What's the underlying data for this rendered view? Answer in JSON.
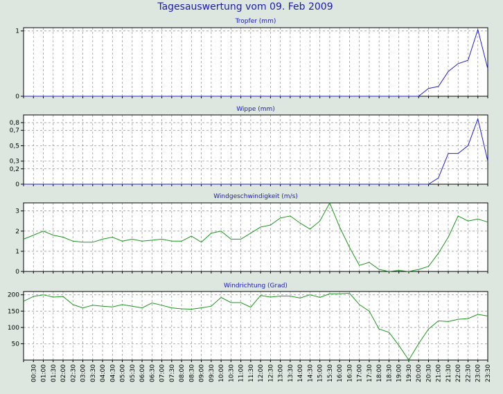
{
  "page": {
    "title": "Tagesauswertung vom 09. Feb 2009"
  },
  "x_labels": [
    "00:30",
    "01:00",
    "01:30",
    "02:00",
    "02:30",
    "03:00",
    "03:30",
    "04:00",
    "04:30",
    "05:00",
    "05:30",
    "06:00",
    "06:30",
    "07:00",
    "07:30",
    "08:00",
    "08:30",
    "09:00",
    "09:30",
    "10:00",
    "10:30",
    "11:00",
    "11:30",
    "12:00",
    "12:30",
    "13:00",
    "13:30",
    "14:00",
    "14:30",
    "15:00",
    "15:30",
    "16:00",
    "16:30",
    "17:00",
    "17:30",
    "18:00",
    "18:30",
    "19:00",
    "19:30",
    "20:00",
    "20:30",
    "21:00",
    "21:30",
    "22:00",
    "22:30",
    "23:00",
    "23:30"
  ],
  "colors": {
    "page_bg": "#dde7df",
    "text": "#1a1ab4",
    "rain_line": "#1f1fcc",
    "wind_line": "#1b961b",
    "grid": "#8c8c8c"
  },
  "chart_data": [
    {
      "type": "line",
      "title": "Tropfer (mm)",
      "yticks": [
        "1",
        "0"
      ],
      "ylim": [
        0,
        1.05
      ],
      "grid": true,
      "color": "#1f1fcc",
      "series": [
        {
          "values": [
            0,
            0,
            0,
            0,
            0,
            0,
            0,
            0,
            0,
            0,
            0,
            0,
            0,
            0,
            0,
            0,
            0,
            0,
            0,
            0,
            0,
            0,
            0,
            0,
            0,
            0,
            0,
            0,
            0,
            0,
            0,
            0,
            0,
            0,
            0,
            0,
            0,
            0,
            0,
            0,
            0,
            0.12,
            0.15,
            0.38,
            0.5,
            0.55,
            1.02,
            0.42
          ]
        }
      ]
    },
    {
      "type": "line",
      "title": "Wippe (mm)",
      "yticks": [
        "0,8",
        "0,7",
        "0,5",
        "0,3",
        "0,2",
        "0"
      ],
      "ylim": [
        0,
        0.9
      ],
      "grid": true,
      "color": "#1f1fcc",
      "series": [
        {
          "values": [
            0,
            0,
            0,
            0,
            0,
            0,
            0,
            0,
            0,
            0,
            0,
            0,
            0,
            0,
            0,
            0,
            0,
            0,
            0,
            0,
            0,
            0,
            0,
            0,
            0,
            0,
            0,
            0,
            0,
            0,
            0,
            0,
            0,
            0,
            0,
            0,
            0,
            0,
            0,
            0,
            0,
            0,
            0.08,
            0.4,
            0.4,
            0.5,
            0.85,
            0.3
          ]
        }
      ]
    },
    {
      "type": "line",
      "title": "Windgeschwindigkeit (m/s)",
      "yticks": [
        "3",
        "2",
        "1",
        "0"
      ],
      "ylim": [
        0,
        3.4
      ],
      "grid": true,
      "color": "#1b961b",
      "series": [
        {
          "values": [
            1.6,
            1.8,
            2.0,
            1.8,
            1.7,
            1.5,
            1.45,
            1.45,
            1.6,
            1.7,
            1.5,
            1.6,
            1.5,
            1.55,
            1.6,
            1.5,
            1.5,
            1.75,
            1.45,
            1.9,
            2.0,
            1.6,
            1.6,
            1.9,
            2.2,
            2.3,
            2.65,
            2.75,
            2.4,
            2.1,
            2.5,
            3.4,
            2.2,
            1.2,
            0.3,
            0.45,
            0.1,
            0.0,
            0.05,
            0.0,
            0.1,
            0.25,
            0.9,
            1.7,
            2.75,
            2.5,
            2.6,
            2.45
          ]
        }
      ]
    },
    {
      "type": "line",
      "title": "Windrichtung (Grad)",
      "yticks": [
        "200",
        "150",
        "100",
        "50"
      ],
      "ylim": [
        0,
        210
      ],
      "grid": true,
      "color": "#1b961b",
      "series": [
        {
          "values": [
            180,
            195,
            200,
            193,
            195,
            170,
            160,
            168,
            165,
            163,
            170,
            165,
            160,
            175,
            168,
            160,
            157,
            156,
            160,
            165,
            192,
            176,
            176,
            162,
            198,
            193,
            196,
            196,
            190,
            200,
            192,
            203,
            203,
            205,
            170,
            150,
            95,
            85,
            45,
            0,
            50,
            95,
            120,
            118,
            125,
            127,
            140,
            135
          ]
        }
      ]
    }
  ]
}
